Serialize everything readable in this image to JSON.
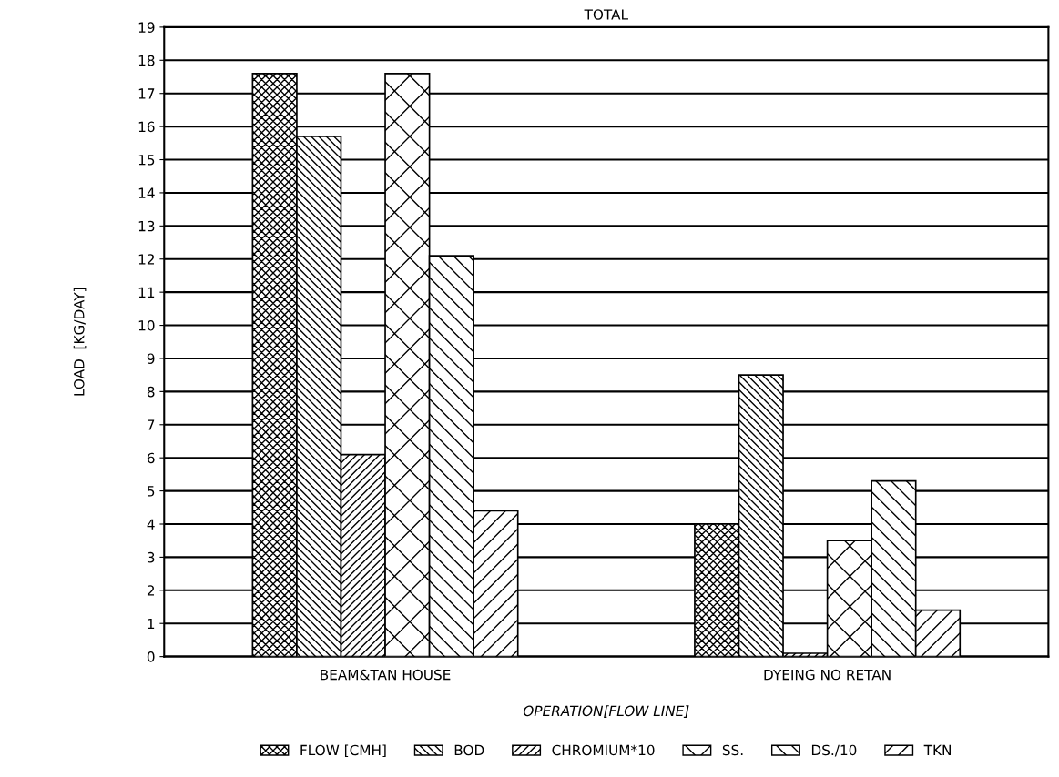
{
  "chart_data": {
    "type": "bar",
    "title": "TOTAL",
    "xlabel": "OPERATION[FLOW LINE]",
    "ylabel": "LOAD  [KG/DAY]",
    "categories": [
      "BEAM&TAN HOUSE",
      "DYEING NO RETAN"
    ],
    "series": [
      {
        "name": "FLOW [CMH]",
        "color": "#000000",
        "values": [
          17.6,
          4.0
        ]
      },
      {
        "name": "BOD",
        "color": "#000000",
        "values": [
          15.7,
          8.5
        ]
      },
      {
        "name": "CHROMIUM*10",
        "color": "#000000",
        "values": [
          6.1,
          0.1
        ]
      },
      {
        "name": "SS.",
        "color": "#000000",
        "values": [
          17.6,
          3.5
        ]
      },
      {
        "name": "DS./10",
        "color": "#000000",
        "values": [
          12.1,
          5.3
        ]
      },
      {
        "name": "TKN",
        "color": "#000000",
        "values": [
          4.4,
          1.4
        ]
      }
    ],
    "ylim": [
      0,
      19
    ],
    "yticks": [
      0,
      1,
      2,
      3,
      4,
      5,
      6,
      7,
      8,
      9,
      10,
      11,
      12,
      13,
      14,
      15,
      16,
      17,
      18,
      19
    ],
    "grid": "y",
    "legend": "bottom"
  }
}
